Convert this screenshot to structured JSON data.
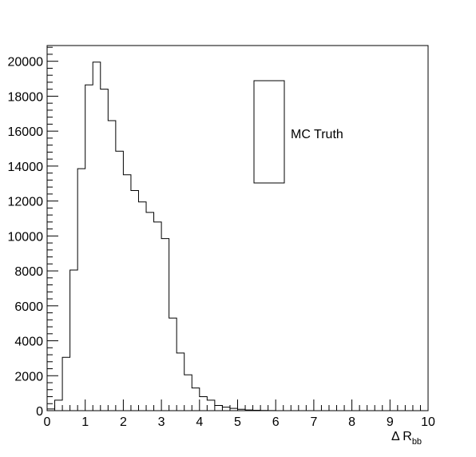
{
  "chart_data": {
    "type": "bar",
    "histogram": true,
    "x_edges_start": 0,
    "bin_width": 0.2,
    "values": [
      100,
      600,
      3050,
      8050,
      13850,
      18650,
      19950,
      18400,
      16600,
      14850,
      13500,
      12600,
      11950,
      11350,
      10800,
      9850,
      5300,
      3300,
      2050,
      1300,
      800,
      600,
      300,
      200,
      130,
      80,
      40,
      25,
      10,
      5,
      0,
      0,
      0,
      0,
      0,
      0,
      0,
      0,
      0,
      0,
      0,
      0,
      0,
      0,
      0,
      0,
      0,
      0,
      0,
      0
    ],
    "title": "",
    "xlabel": "Δ R",
    "xlabel_subscript": "bb",
    "ylabel": "",
    "xlim": [
      0,
      10
    ],
    "ylim": [
      0,
      20900
    ],
    "x_ticks": [
      "0",
      "1",
      "2",
      "3",
      "4",
      "5",
      "6",
      "7",
      "8",
      "9",
      "10"
    ],
    "y_ticks": [
      "0",
      "2000",
      "4000",
      "6000",
      "8000",
      "10000",
      "12000",
      "14000",
      "16000",
      "18000",
      "20000"
    ],
    "grid": false,
    "legend": {
      "entries": [
        "MC Truth"
      ],
      "placement": "top-right"
    },
    "series": [
      {
        "name": "MC Truth"
      }
    ],
    "line_color": "#000000"
  }
}
